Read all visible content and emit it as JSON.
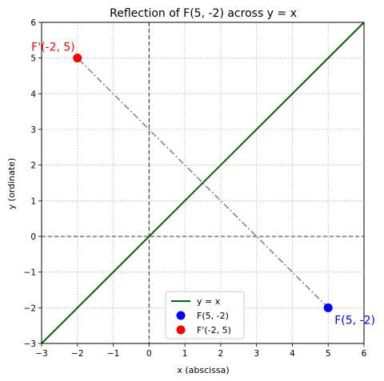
{
  "chart_data": {
    "type": "scatter",
    "title": "Reflection of F(5, -2) across y = x",
    "xlabel": "x (abscissa)",
    "ylabel": "y (ordinate)",
    "xlim": [
      -3,
      6
    ],
    "ylim": [
      -3,
      6
    ],
    "xticks": [
      -3,
      -2,
      -1,
      0,
      1,
      2,
      3,
      4,
      5,
      6
    ],
    "yticks": [
      -3,
      -2,
      -1,
      0,
      1,
      2,
      3,
      4,
      5,
      6
    ],
    "grid": true,
    "legend_position": "bottom-center",
    "lines": [
      {
        "name": "y = x",
        "x": [
          -3,
          6
        ],
        "y": [
          -3,
          6
        ],
        "color": "#006400",
        "style": "solid"
      },
      {
        "name": "",
        "x": [
          5,
          -2
        ],
        "y": [
          -2,
          5
        ],
        "color": "#808080",
        "style": "dash-dot"
      }
    ],
    "reference_lines": [
      {
        "axis": "x",
        "value": 0,
        "color": "#333333",
        "style": "dashed"
      },
      {
        "axis": "y",
        "value": 0,
        "color": "#333333",
        "style": "dashed"
      }
    ],
    "points": [
      {
        "name": "F(5, -2)",
        "x": 5,
        "y": -2,
        "color": "#0000ff",
        "label": "F(5, -2)"
      },
      {
        "name": "F'(-2, 5)",
        "x": -2,
        "y": 5,
        "color": "#ff0000",
        "label": "F'(-2, 5)"
      }
    ]
  }
}
